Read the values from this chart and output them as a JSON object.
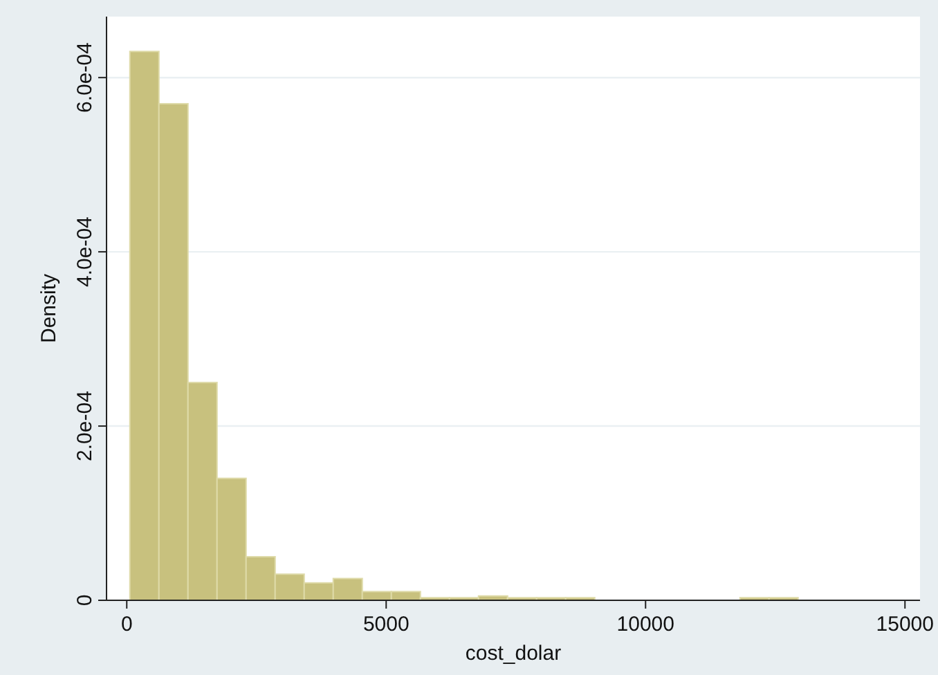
{
  "chart_data": {
    "type": "histogram",
    "xlabel": "cost_dolar",
    "ylabel": "Density",
    "bins": [
      60,
      620,
      1180,
      1740,
      2300,
      2860,
      3420,
      3980,
      4540,
      5100,
      5660,
      6220,
      6780,
      7340,
      7900,
      8460,
      9020,
      9580,
      10140,
      10700,
      11260,
      11820,
      12380,
      12940
    ],
    "values": [
      0.00063,
      0.00057,
      0.00025,
      0.00014,
      5e-05,
      3e-05,
      2e-05,
      2.5e-05,
      1e-05,
      1e-05,
      3e-06,
      3e-06,
      5e-06,
      3e-06,
      3e-06,
      3e-06,
      0,
      0,
      0,
      0,
      0,
      3e-06,
      3e-06
    ],
    "color": "#c8c17e",
    "xlim": [
      -390,
      15290
    ],
    "xticks": [
      0,
      5000,
      10000,
      15000
    ],
    "ylim": [
      0,
      0.00067
    ],
    "yticks": [
      0,
      {
        "value": 0.0002,
        "label": "2.0e-04"
      },
      {
        "value": 0.0004,
        "label": "4.0e-04"
      },
      {
        "value": 0.0006,
        "label": "6.0e-04"
      }
    ],
    "grid": "y"
  }
}
